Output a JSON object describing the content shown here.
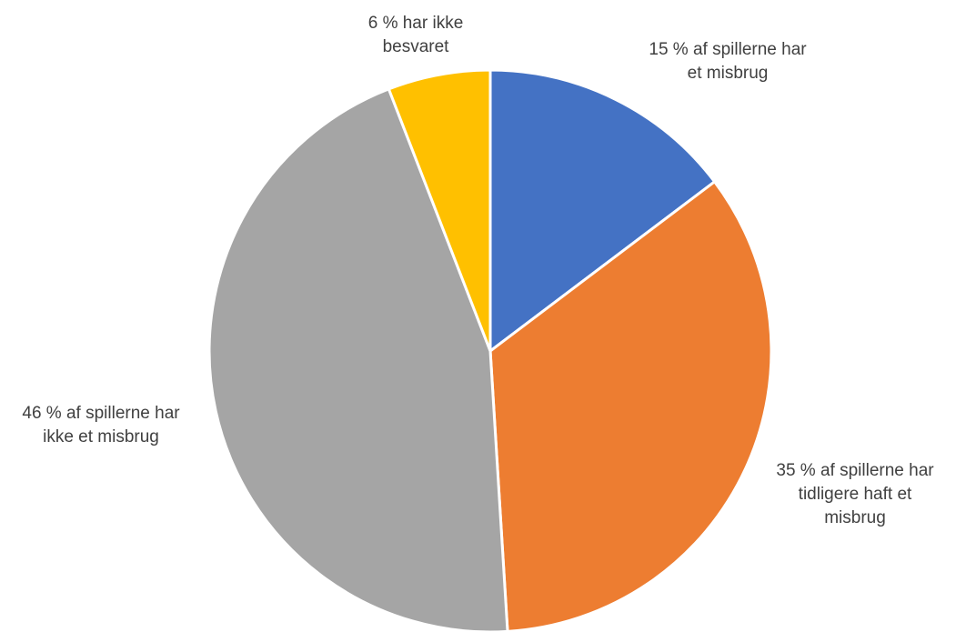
{
  "chart_data": {
    "type": "pie",
    "title": "",
    "start_angle_deg": 0,
    "direction": "clockwise",
    "legend": "none",
    "slices": [
      {
        "value": 15,
        "label_lines": [
          "15 % af spillerne har",
          "et misbrug"
        ],
        "color": "#4472C4"
      },
      {
        "value": 35,
        "label_lines": [
          "35 % af spillerne har",
          "tidligere haft et",
          "misbrug"
        ],
        "color": "#ED7D31"
      },
      {
        "value": 46,
        "label_lines": [
          "46 % af spillerne har",
          "ikke et misbrug"
        ],
        "color": "#A5A5A5"
      },
      {
        "value": 6,
        "label_lines": [
          "6 %  har ikke",
          "besvaret"
        ],
        "color": "#FFC000"
      }
    ]
  }
}
